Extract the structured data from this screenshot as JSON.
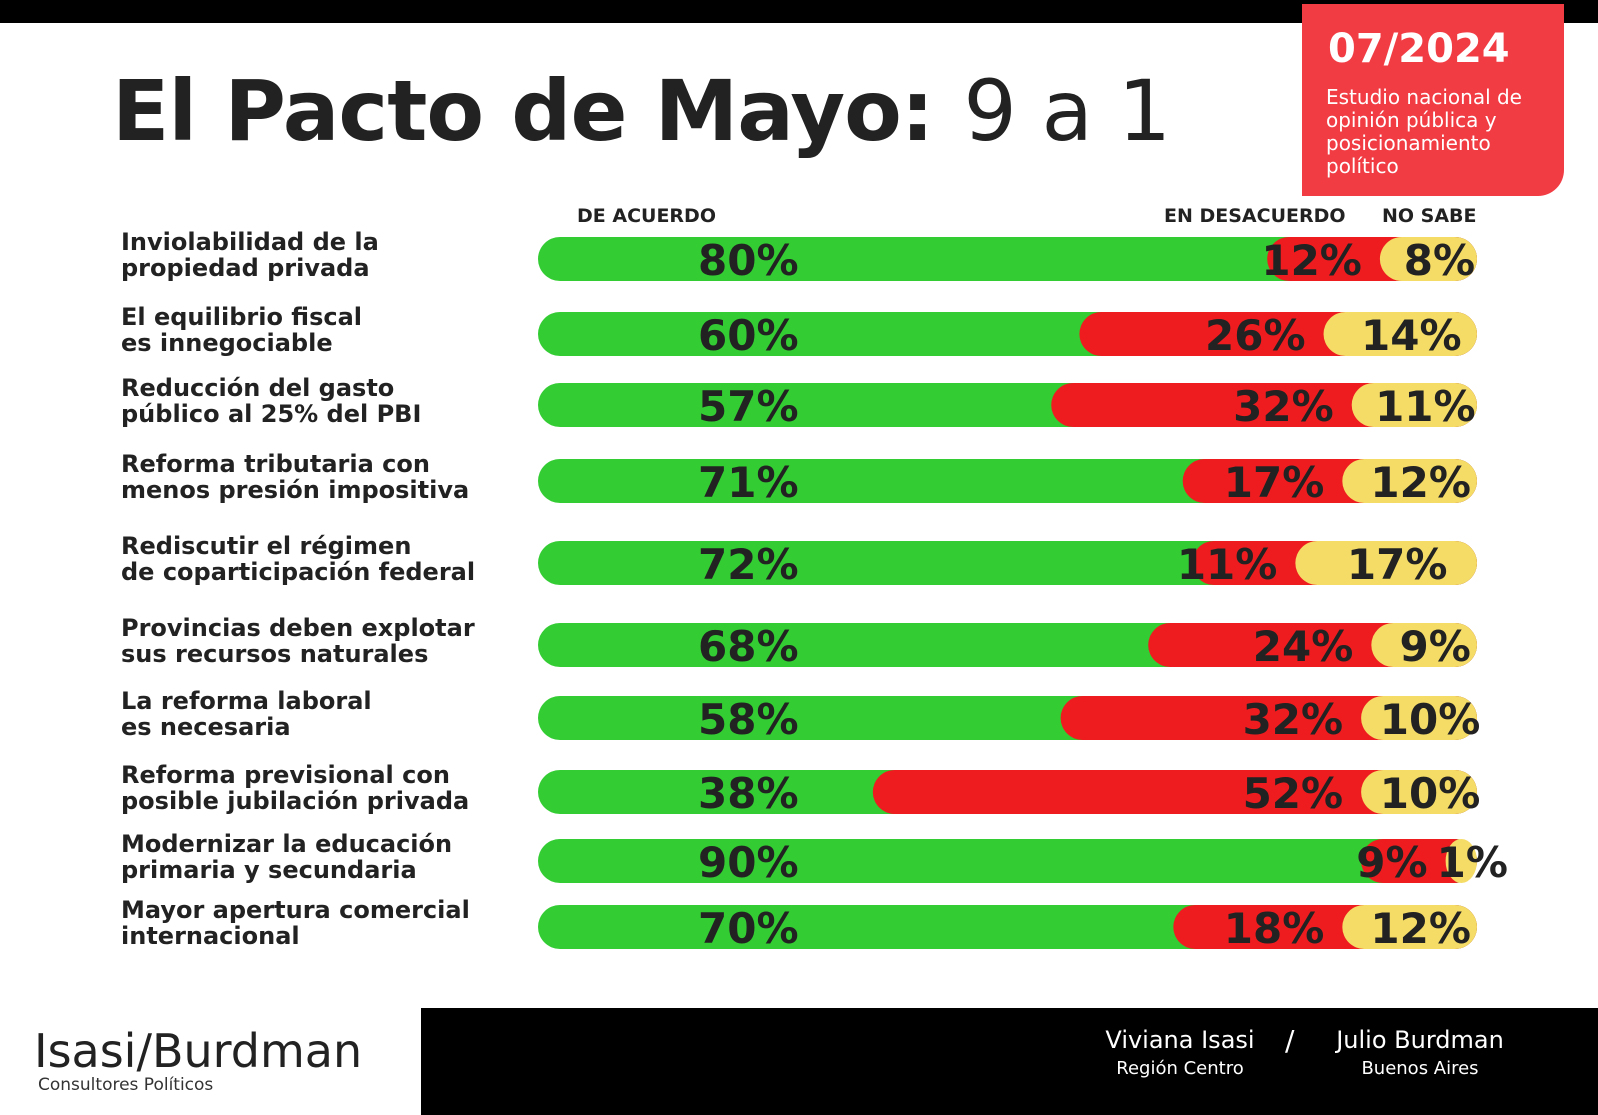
{
  "header": {
    "title": "El Pacto de Mayo:",
    "subtitle": "9 a 1"
  },
  "badge": {
    "date": "07/2024",
    "description": "Estudio nacional de opinión pública y posicionamiento político"
  },
  "chart_data": {
    "type": "bar",
    "orientation": "horizontal-stacked",
    "title": "El Pacto de Mayo: 9 a 1",
    "series_names": [
      "DE ACUERDO",
      "EN DESACUERDO",
      "NO SABE"
    ],
    "colors": [
      "#33cc33",
      "#ee1c1f",
      "#f5dc66"
    ],
    "categories": [
      [
        "Inviolabilidad de la",
        "propiedad privada"
      ],
      [
        "El equilibrio fiscal",
        "es innegociable"
      ],
      [
        "Reducción del gasto",
        "público al 25% del PBI"
      ],
      [
        "Reforma tributaria con",
        "menos presión impositiva"
      ],
      [
        "Rediscutir el régimen",
        "de coparticipación federal"
      ],
      [
        "Provincias deben explotar",
        "sus recursos naturales"
      ],
      [
        "La reforma laboral",
        "es necesaria"
      ],
      [
        "Reforma previsional con",
        "posible jubilación privada"
      ],
      [
        "Modernizar la educación",
        "primaria y secundaria"
      ],
      [
        "Mayor apertura comercial",
        "internacional"
      ]
    ],
    "series": [
      {
        "name": "DE ACUERDO",
        "values": [
          80,
          60,
          57,
          71,
          72,
          68,
          58,
          38,
          90,
          70
        ]
      },
      {
        "name": "EN DESACUERDO",
        "values": [
          12,
          26,
          32,
          17,
          11,
          24,
          32,
          52,
          9,
          18
        ]
      },
      {
        "name": "NO SABE",
        "values": [
          8,
          14,
          11,
          12,
          17,
          9,
          10,
          10,
          1,
          12
        ]
      }
    ],
    "value_labels": [
      [
        "80%",
        "12%",
        "8%"
      ],
      [
        "60%",
        "26%",
        "14%"
      ],
      [
        "57%",
        "32%",
        "11%"
      ],
      [
        "71%",
        "17%",
        "12%"
      ],
      [
        "72%",
        "11%",
        "17%"
      ],
      [
        "68%",
        "24%",
        "9%"
      ],
      [
        "58%",
        "32%",
        "10%"
      ],
      [
        "38%",
        "52%",
        "10%"
      ],
      [
        "90%",
        "9%",
        "1%"
      ],
      [
        "70%",
        "18%",
        "12%"
      ]
    ],
    "xlim": [
      0,
      100
    ],
    "legend": "top"
  },
  "footer": {
    "logo": "Isasi/Burdman",
    "logo_sub": "Consultores Políticos",
    "people": [
      {
        "name": "Viviana Isasi",
        "region": "Región Centro"
      },
      {
        "name": "Julio Burdman",
        "region": "Buenos Aires"
      }
    ],
    "separator": "/"
  }
}
